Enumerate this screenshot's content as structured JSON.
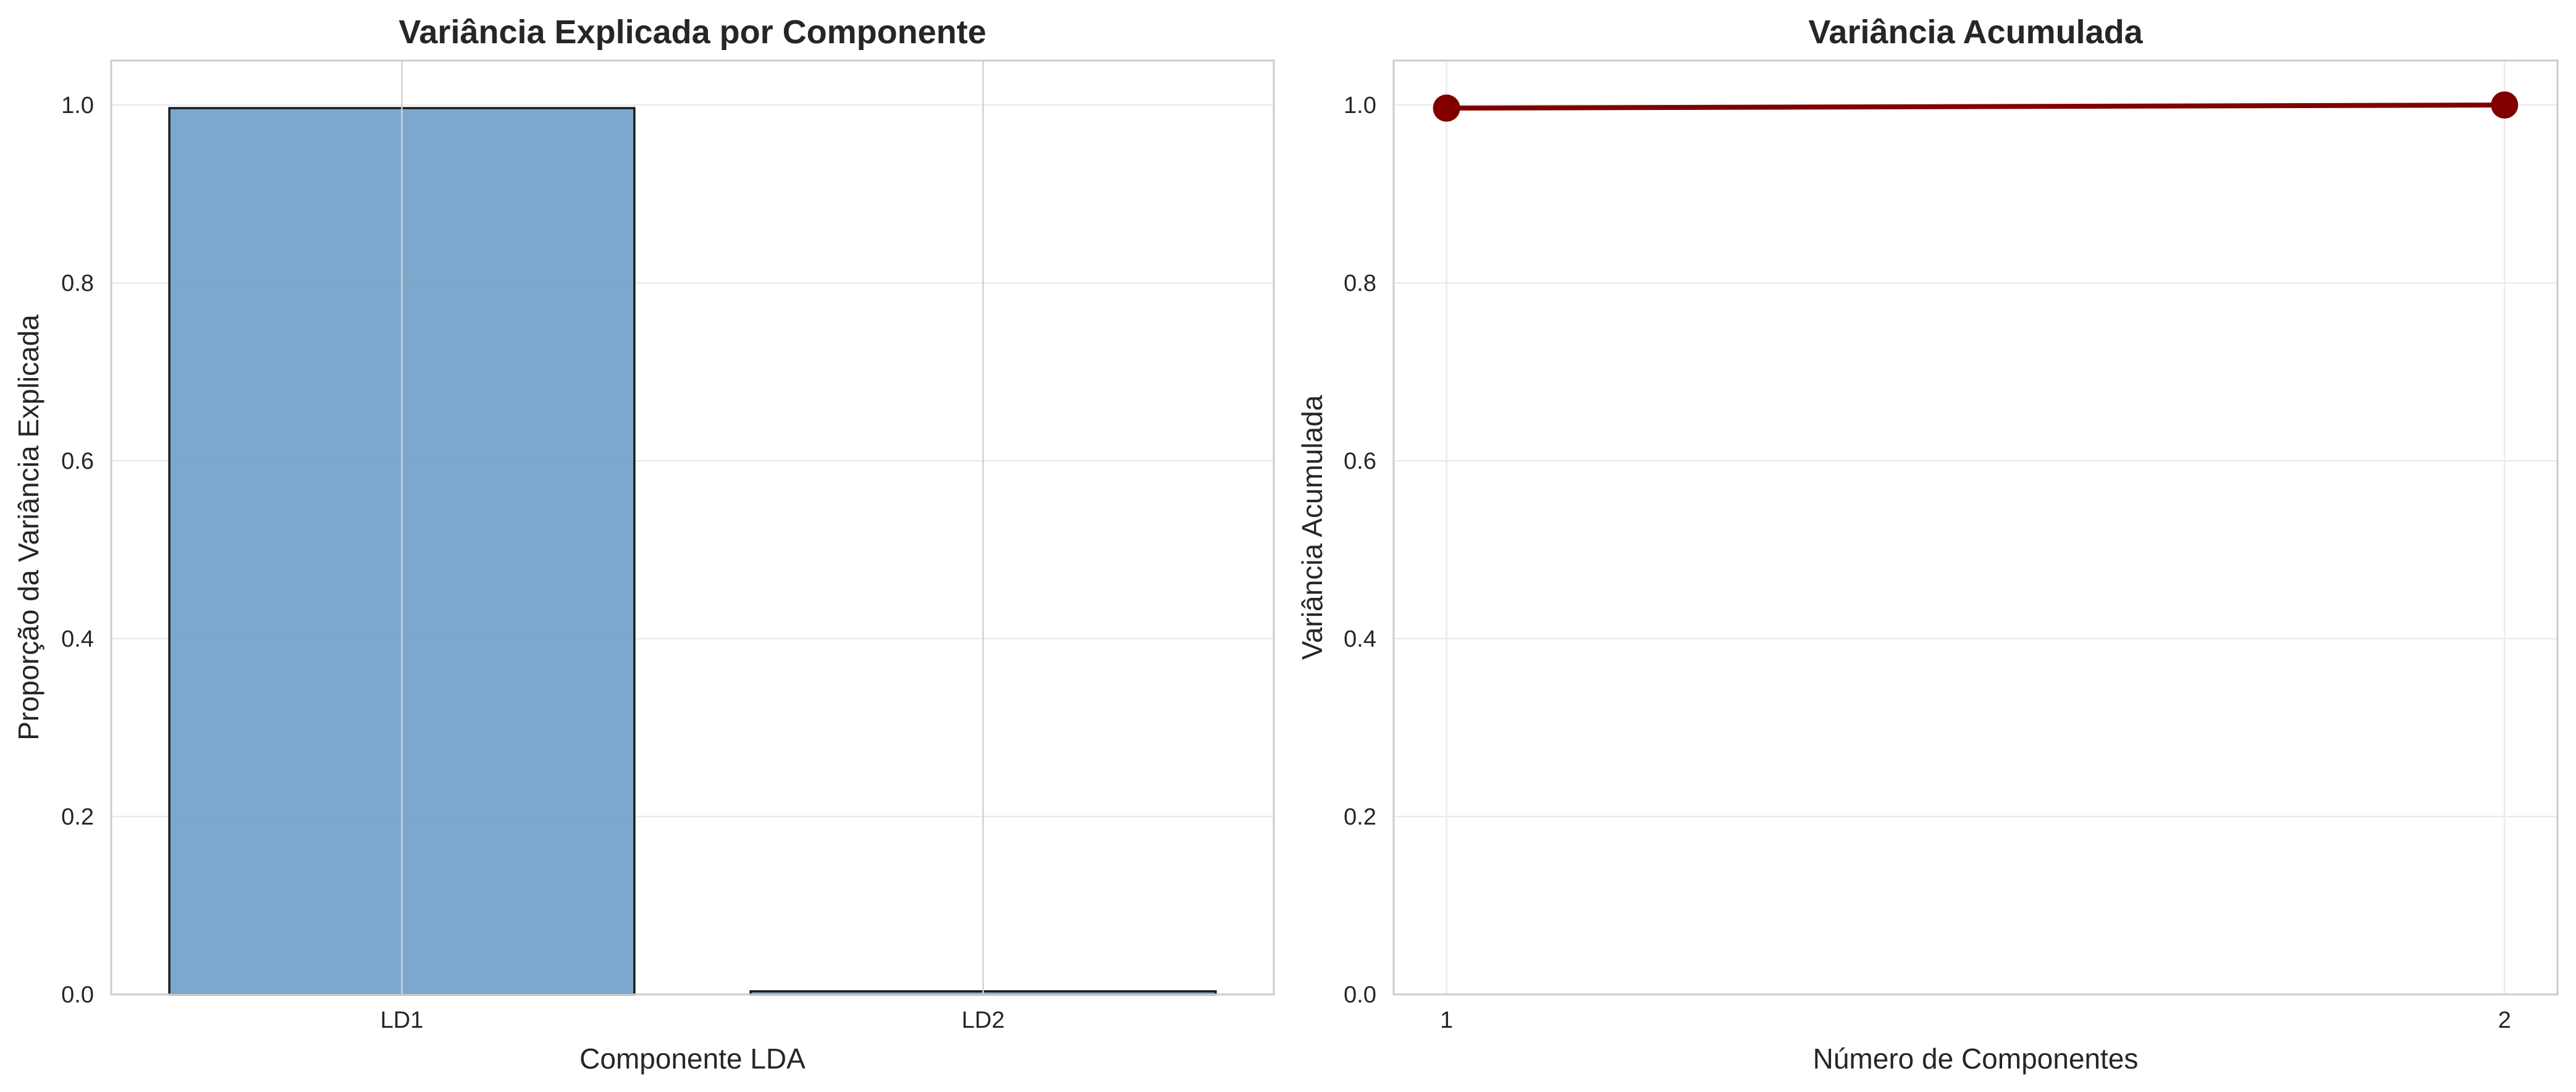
{
  "chart_data": [
    {
      "type": "bar",
      "title": "Variância Explicada por Componente",
      "xlabel": "Componente LDA",
      "ylabel": "Proporção da Variância Explicada",
      "categories": [
        "LD1",
        "LD2"
      ],
      "values": [
        0.9965,
        0.0035
      ],
      "ylim": [
        0,
        1.05
      ],
      "yticks": [
        "0.0",
        "0.2",
        "0.4",
        "0.6",
        "0.8",
        "1.0"
      ],
      "bar_color": "#6699c4",
      "bar_edge_color": "#1a1a1a",
      "grid": true
    },
    {
      "type": "line",
      "title": "Variância Acumulada",
      "xlabel": "Número de Componentes",
      "ylabel": "Variância Acumulada",
      "x": [
        1,
        2
      ],
      "xticks": [
        "1",
        "2"
      ],
      "values": [
        0.9965,
        1.0
      ],
      "ylim": [
        0,
        1.05
      ],
      "yticks": [
        "0.0",
        "0.2",
        "0.4",
        "0.6",
        "0.8",
        "1.0"
      ],
      "line_color": "#800000",
      "marker": "circle",
      "grid": true
    }
  ]
}
